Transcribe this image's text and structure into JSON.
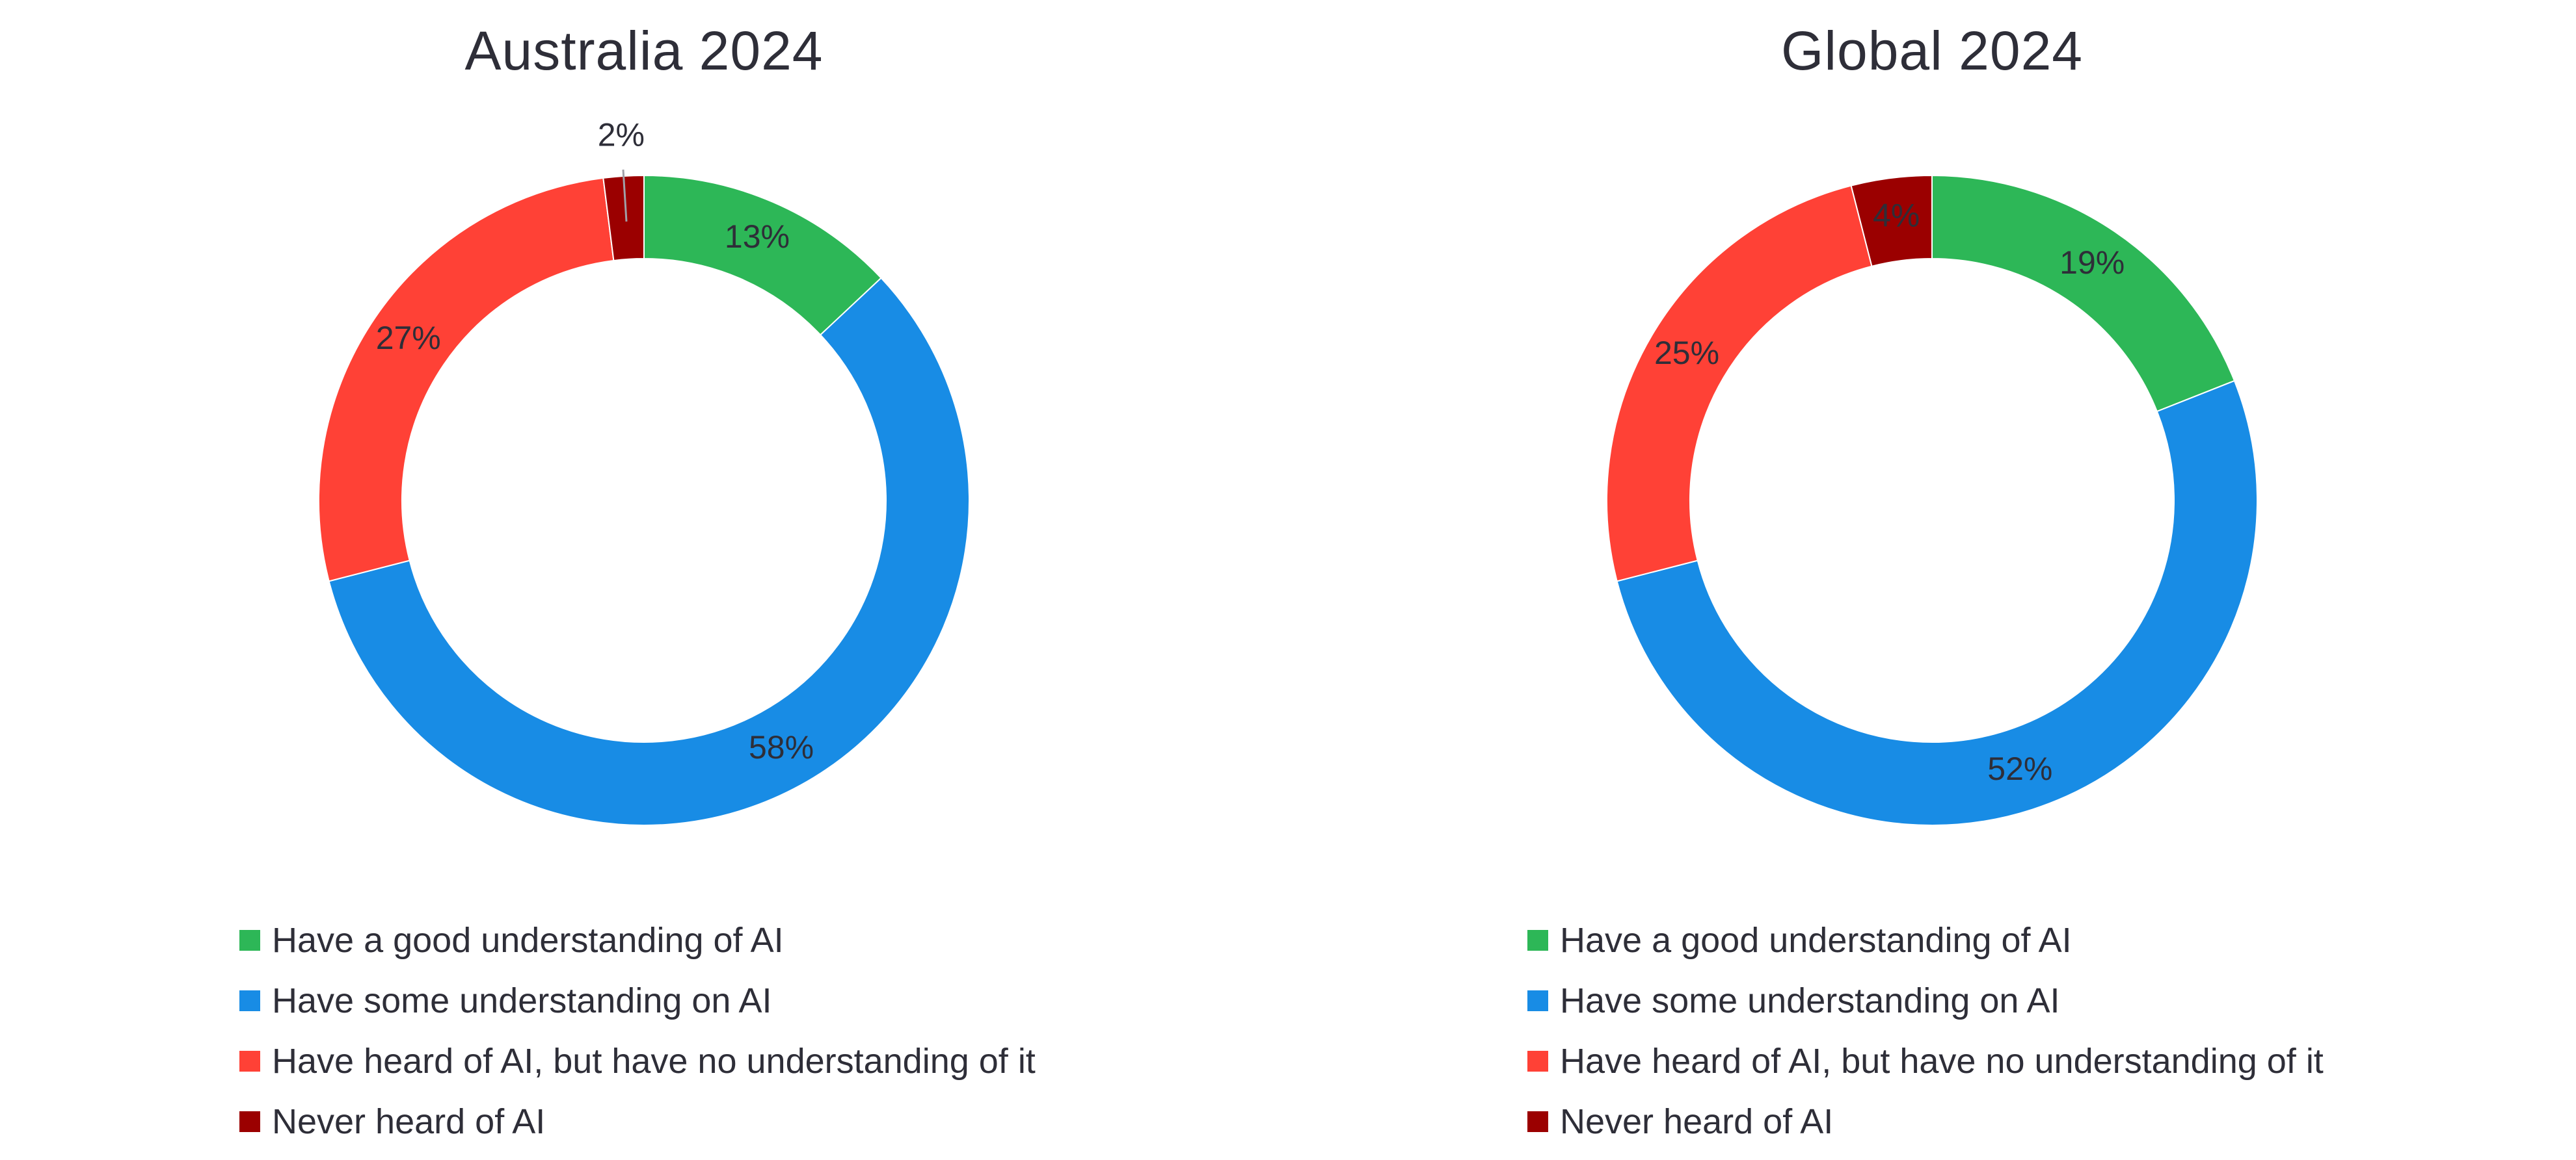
{
  "colors": {
    "good": "#2db757",
    "some": "#188ce5",
    "heard": "#ff4136",
    "never": "#9b0000"
  },
  "chart_data": [
    {
      "type": "pie",
      "subtype": "donut",
      "title": "Australia 2024",
      "categories": [
        "Have a good understanding of AI",
        "Have some understanding on AI",
        "Have heard of AI, but have no understanding of it",
        "Never heard of AI"
      ],
      "values": [
        13,
        58,
        27,
        2
      ],
      "labels": [
        "13%",
        "58%",
        "27%",
        "2%"
      ],
      "legend_position": "bottom"
    },
    {
      "type": "pie",
      "subtype": "donut",
      "title": "Global 2024",
      "categories": [
        "Have a good understanding of AI",
        "Have some understanding on AI",
        "Have heard of AI, but have no understanding of it",
        "Never heard of AI"
      ],
      "values": [
        19,
        52,
        25,
        4
      ],
      "labels": [
        "19%",
        "52%",
        "25%",
        "4%"
      ],
      "legend_position": "bottom"
    }
  ]
}
